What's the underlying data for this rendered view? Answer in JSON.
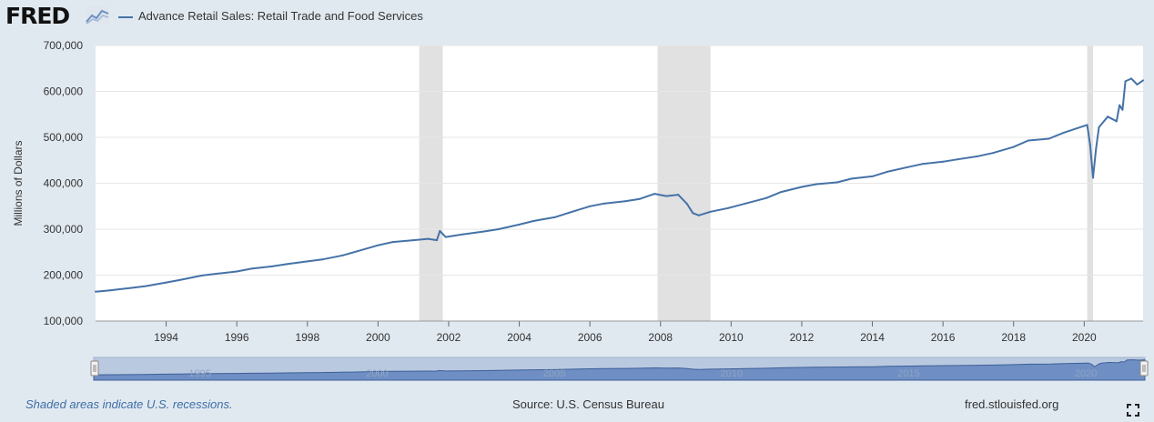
{
  "header": {
    "logo_text": "FRED",
    "logo_icon": "line-graph-icon",
    "series_label": "Advance Retail Sales: Retail Trade and Food Services"
  },
  "footer": {
    "recession_note": "Shaded areas indicate U.S. recessions.",
    "source": "Source: U.S. Census Bureau",
    "site": "fred.stlouisfed.org",
    "fullscreen_icon": "fullscreen-expand-icon"
  },
  "colors": {
    "series": "#4572a7",
    "recession": "#e1e1e1",
    "plot_bg": "#ffffff",
    "page_bg": "#e1e9f0",
    "navigator_bg": "#b9c9e0",
    "navigator_fill": "#6f8fc4"
  },
  "chart_data": {
    "type": "line",
    "title": "",
    "xlabel": "",
    "ylabel": "Millions of Dollars",
    "ylim": [
      100000,
      700000
    ],
    "xlim": [
      "1992-01",
      "2021-09"
    ],
    "grid": true,
    "y_ticks": [
      "100,000",
      "200,000",
      "300,000",
      "400,000",
      "500,000",
      "600,000",
      "700,000"
    ],
    "x_ticks": [
      "1994",
      "1996",
      "1998",
      "2000",
      "2002",
      "2004",
      "2006",
      "2008",
      "2010",
      "2012",
      "2014",
      "2016",
      "2018",
      "2020"
    ],
    "recessions": [
      [
        "2001-03",
        "2001-11"
      ],
      [
        "2007-12",
        "2009-06"
      ],
      [
        "2020-02",
        "2020-04"
      ]
    ],
    "navigator_ticks": [
      "1995",
      "2000",
      "2005",
      "2010",
      "2015",
      "2020"
    ],
    "series": [
      {
        "name": "Advance Retail Sales: Retail Trade and Food Services",
        "x": [
          "1992-01",
          "1992-06",
          "1993-01",
          "1993-06",
          "1994-01",
          "1994-06",
          "1995-01",
          "1995-06",
          "1996-01",
          "1996-06",
          "1997-01",
          "1997-06",
          "1998-01",
          "1998-06",
          "1999-01",
          "1999-06",
          "2000-01",
          "2000-06",
          "2001-01",
          "2001-06",
          "2001-09",
          "2001-10",
          "2001-12",
          "2002-06",
          "2003-01",
          "2003-06",
          "2004-01",
          "2004-06",
          "2005-01",
          "2005-06",
          "2006-01",
          "2006-06",
          "2007-01",
          "2007-06",
          "2007-11",
          "2008-03",
          "2008-07",
          "2008-10",
          "2008-12",
          "2009-02",
          "2009-06",
          "2009-12",
          "2010-06",
          "2011-01",
          "2011-06",
          "2012-01",
          "2012-06",
          "2013-01",
          "2013-06",
          "2014-01",
          "2014-06",
          "2015-01",
          "2015-06",
          "2016-01",
          "2016-06",
          "2017-01",
          "2017-06",
          "2018-01",
          "2018-06",
          "2019-01",
          "2019-06",
          "2020-01",
          "2020-02",
          "2020-03",
          "2020-04",
          "2020-05",
          "2020-06",
          "2020-09",
          "2020-12",
          "2021-01",
          "2021-02",
          "2021-03",
          "2021-05",
          "2021-07",
          "2021-09"
        ],
        "values": [
          164000,
          167000,
          172000,
          176000,
          184000,
          190000,
          199000,
          203000,
          208000,
          214000,
          219000,
          224000,
          230000,
          234000,
          243000,
          252000,
          265000,
          272000,
          276000,
          279000,
          276000,
          296000,
          283000,
          289000,
          295000,
          300000,
          310000,
          318000,
          326000,
          336000,
          350000,
          356000,
          361000,
          366000,
          377000,
          372000,
          375000,
          355000,
          335000,
          330000,
          338000,
          346000,
          356000,
          368000,
          381000,
          392000,
          398000,
          402000,
          410000,
          415000,
          425000,
          435000,
          442000,
          447000,
          452000,
          459000,
          466000,
          479000,
          493000,
          497000,
          510000,
          525000,
          527000,
          484000,
          412000,
          475000,
          522000,
          545000,
          535000,
          570000,
          560000,
          622000,
          628000,
          615000,
          624000
        ]
      }
    ]
  }
}
